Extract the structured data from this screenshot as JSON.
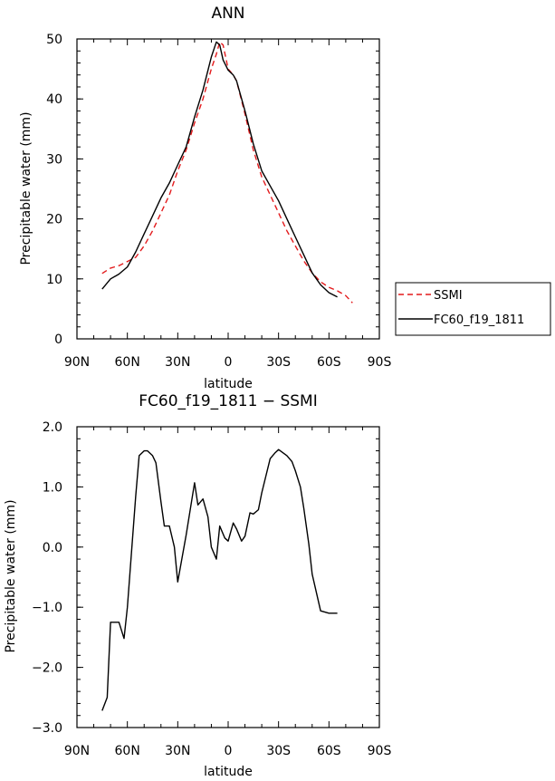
{
  "colors": {
    "ssmi": "#e31a1c",
    "model": "#000000",
    "axis": "#000000"
  },
  "legend": {
    "items": [
      "SSMI",
      "FC60_f19_1811"
    ]
  },
  "chart_data": [
    {
      "type": "line",
      "title": "ANN",
      "xlabel": "latitude",
      "ylabel": "Precipitable water (mm)",
      "xlim": [
        90,
        -90
      ],
      "ylim": [
        0,
        50
      ],
      "x_ticks": [
        90,
        60,
        30,
        0,
        -30,
        -60,
        -90
      ],
      "x_tick_labels": [
        "90N",
        "60N",
        "30N",
        "0",
        "30S",
        "60S",
        "90S"
      ],
      "y_ticks": [
        0,
        10,
        20,
        30,
        40,
        50
      ],
      "y_tick_labels": [
        "0",
        "10",
        "20",
        "30",
        "40",
        "50"
      ],
      "series": [
        {
          "name": "SSMI",
          "style": "dashed",
          "color": "#e31a1c",
          "x": [
            75,
            70,
            65,
            60,
            55,
            50,
            45,
            40,
            35,
            30,
            25,
            20,
            15,
            10,
            7,
            5,
            3,
            0,
            -3,
            -5,
            -10,
            -15,
            -20,
            -25,
            -30,
            -35,
            -40,
            -45,
            -50,
            -55,
            -60,
            -65,
            -70,
            -74
          ],
          "y": [
            10.9,
            11.8,
            12.2,
            12.9,
            13.6,
            15.5,
            18.0,
            21.0,
            24.0,
            28.0,
            31.5,
            36.0,
            40.0,
            45.0,
            47.5,
            49.5,
            49.0,
            45.0,
            44.0,
            43.0,
            37.5,
            31.5,
            27.0,
            24.0,
            21.0,
            18.0,
            15.5,
            13.0,
            11.0,
            9.5,
            8.6,
            8.0,
            7.2,
            6.0
          ]
        },
        {
          "name": "FC60_f19_1811",
          "style": "solid",
          "color": "#000000",
          "x": [
            75,
            70,
            65,
            60,
            55,
            50,
            45,
            40,
            35,
            30,
            25,
            20,
            15,
            10,
            7,
            5,
            3,
            0,
            -3,
            -5,
            -10,
            -15,
            -20,
            -25,
            -30,
            -35,
            -40,
            -45,
            -50,
            -55,
            -60,
            -65
          ],
          "y": [
            8.3,
            10.0,
            10.8,
            12.0,
            14.5,
            17.5,
            20.5,
            23.5,
            26.0,
            29.0,
            32.0,
            37.0,
            41.5,
            47.0,
            49.5,
            49.0,
            46.5,
            44.8,
            44.0,
            43.0,
            38.0,
            32.5,
            28.0,
            25.5,
            23.0,
            20.0,
            17.0,
            14.0,
            11.0,
            9.0,
            7.7,
            7.0
          ]
        }
      ]
    },
    {
      "type": "line",
      "title": "FC60_f19_1811 − SSMI",
      "xlabel": "latitude",
      "ylabel": "Precipitable water (mm)",
      "xlim": [
        90,
        -90
      ],
      "ylim": [
        -3.0,
        2.0
      ],
      "x_ticks": [
        90,
        60,
        30,
        0,
        -30,
        -60,
        -90
      ],
      "x_tick_labels": [
        "90N",
        "60N",
        "30N",
        "0",
        "30S",
        "60S",
        "90S"
      ],
      "y_ticks": [
        -3,
        -2,
        -1,
        0,
        1,
        2
      ],
      "y_tick_labels": [
        "−3.0",
        "−2.0",
        "−1.0",
        "0.0",
        "1.0",
        "2.0"
      ],
      "series": [
        {
          "style": "solid",
          "color": "#000000",
          "x": [
            75,
            72,
            70,
            65,
            62,
            60,
            55,
            53,
            50,
            48,
            45,
            43,
            40,
            38,
            35,
            32,
            30,
            25,
            20,
            18,
            15,
            12,
            10,
            7,
            5,
            2,
            0,
            -3,
            -5,
            -8,
            -10,
            -13,
            -15,
            -18,
            -20,
            -25,
            -28,
            -30,
            -35,
            -38,
            -40,
            -43,
            -45,
            -48,
            -50,
            -55,
            -60,
            -63,
            -65
          ],
          "y": [
            -2.72,
            -2.5,
            -1.25,
            -1.25,
            -1.52,
            -1.0,
            0.85,
            1.52,
            1.6,
            1.6,
            1.52,
            1.4,
            0.75,
            0.35,
            0.35,
            0.0,
            -0.58,
            0.2,
            1.07,
            0.7,
            0.8,
            0.5,
            0.0,
            -0.2,
            0.35,
            0.15,
            0.1,
            0.4,
            0.3,
            0.1,
            0.18,
            0.57,
            0.55,
            0.62,
            0.9,
            1.47,
            1.57,
            1.62,
            1.52,
            1.42,
            1.27,
            1.0,
            0.65,
            0.05,
            -0.45,
            -1.06,
            -1.1,
            -1.1,
            -1.1
          ]
        }
      ]
    }
  ]
}
